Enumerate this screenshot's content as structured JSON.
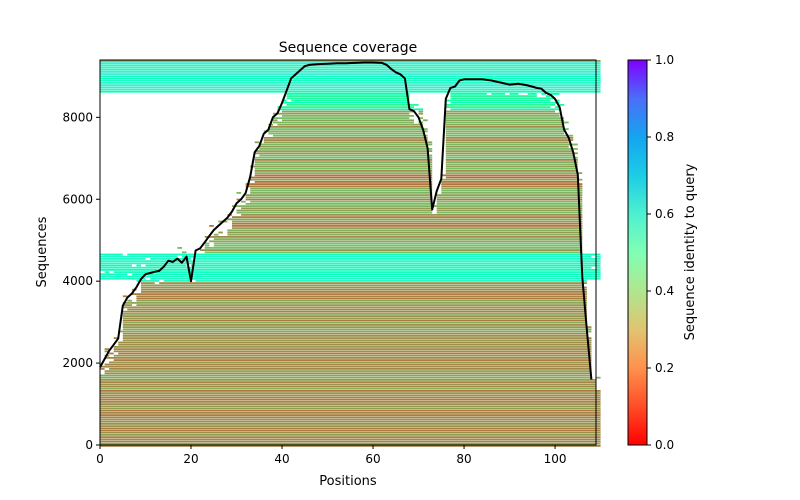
{
  "chart_data": {
    "type": "heatmap",
    "title": "Sequence coverage",
    "xlabel": "Positions",
    "ylabel": "Sequences",
    "xlim": [
      0,
      109
    ],
    "ylim": [
      0,
      9400
    ],
    "xticks": [
      0,
      20,
      40,
      60,
      80,
      100
    ],
    "yticks": [
      0,
      2000,
      4000,
      6000,
      8000
    ],
    "grid": false,
    "colorbar": {
      "label": "Sequence identity to query",
      "colormap": "rainbow_r",
      "range": [
        0.0,
        1.0
      ],
      "ticks": [
        "0.0",
        "0.2",
        "0.4",
        "0.6",
        "0.8",
        "1.0"
      ],
      "placement": "right"
    },
    "bands": [
      {
        "seq_range": [
          8700,
          9400
        ],
        "identity": 0.58,
        "note": "top high-identity block"
      },
      {
        "seq_range": [
          8200,
          8700
        ],
        "identity": 0.45
      },
      {
        "seq_range": [
          4700,
          8200
        ],
        "identity": 0.24
      },
      {
        "seq_range": [
          4000,
          4700
        ],
        "identity": 0.55,
        "note": "mid high-identity block"
      },
      {
        "seq_range": [
          0,
          4000
        ],
        "identity": 0.2
      }
    ],
    "series": [
      {
        "name": "coverage",
        "color": "#000000",
        "x": [
          0,
          1,
          2,
          3,
          4,
          5,
          6,
          7,
          8,
          9,
          10,
          11,
          12,
          13,
          14,
          15,
          16,
          17,
          18,
          19,
          20,
          21,
          22,
          23,
          24,
          25,
          26,
          27,
          28,
          29,
          30,
          31,
          32,
          33,
          34,
          35,
          36,
          37,
          38,
          39,
          40,
          41,
          42,
          43,
          44,
          45,
          46,
          48,
          50,
          52,
          54,
          56,
          58,
          60,
          62,
          63,
          64,
          65,
          66,
          67,
          68,
          69,
          70,
          71,
          72,
          73,
          74,
          75,
          76,
          77,
          78,
          79,
          80,
          82,
          84,
          86,
          88,
          90,
          92,
          94,
          96,
          97,
          98,
          99,
          100,
          101,
          102,
          103,
          104,
          105,
          106,
          107,
          108
        ],
        "y": [
          1900,
          2100,
          2300,
          2450,
          2600,
          3400,
          3600,
          3700,
          3850,
          4050,
          4170,
          4200,
          4230,
          4250,
          4350,
          4500,
          4470,
          4550,
          4450,
          4600,
          4000,
          4750,
          4800,
          4950,
          5100,
          5250,
          5350,
          5450,
          5550,
          5700,
          5900,
          6000,
          6150,
          6550,
          7150,
          7300,
          7600,
          7700,
          8000,
          8100,
          8350,
          8650,
          8950,
          9050,
          9150,
          9250,
          9280,
          9300,
          9310,
          9320,
          9320,
          9330,
          9340,
          9340,
          9330,
          9280,
          9180,
          9100,
          9050,
          8950,
          8200,
          8150,
          8000,
          7700,
          7250,
          5750,
          6200,
          6500,
          8450,
          8720,
          8750,
          8900,
          8930,
          8930,
          8930,
          8900,
          8850,
          8800,
          8820,
          8780,
          8720,
          8700,
          8600,
          8550,
          8450,
          8250,
          7700,
          7500,
          7150,
          6600,
          4100,
          2800,
          1600
        ]
      }
    ]
  }
}
